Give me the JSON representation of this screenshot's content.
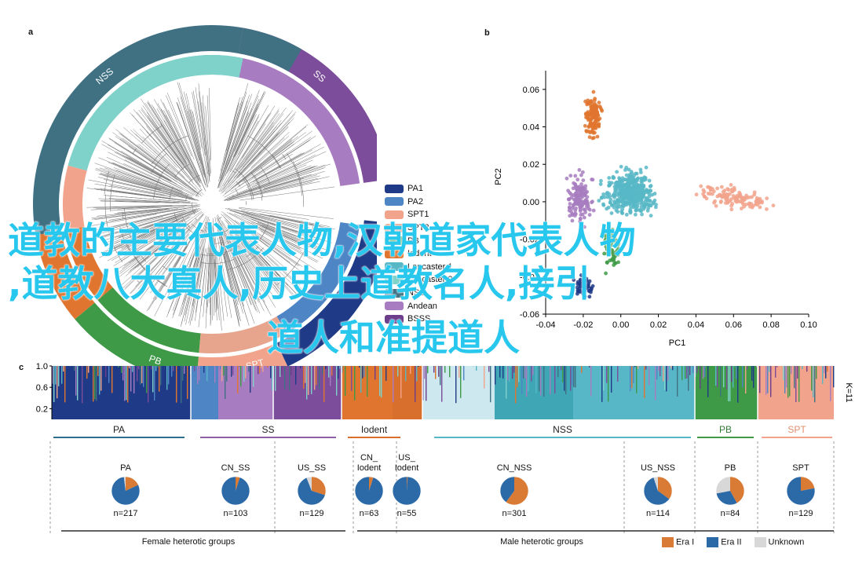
{
  "panels": {
    "a": "a",
    "b": "b",
    "c": "c"
  },
  "colors": {
    "PA1": "#1f3a86",
    "PA2": "#4e86c5",
    "SPT1": "#f2a38c",
    "SPT2": "#e8a58e",
    "PB": "#3f9a47",
    "Iodent": "#e0752f",
    "Lancaster1": "#57b7c6",
    "Lancaster2": "#7fd2c9",
    "NSS": "#3f7183",
    "Andean": "#a77cc0",
    "BSSS": "#6c3e8c",
    "SS": "#7b4d9a",
    "EraI": "#d97a35",
    "EraII": "#2c6aa7",
    "Unknown": "#d8d8d8"
  },
  "tree_ring_labels": [
    "NSS",
    "SS",
    "PB",
    "SPT"
  ],
  "legend_a": [
    {
      "label": "PA1",
      "color": "#1f3a86"
    },
    {
      "label": "PA2",
      "color": "#4e86c5"
    },
    {
      "label": "SPT1",
      "color": "#f2a38c"
    },
    {
      "label": "SPT2",
      "color": "#e8a58e"
    },
    {
      "label": "PB",
      "color": "#3f9a47"
    },
    {
      "label": "Iodent",
      "color": "#e0752f"
    },
    {
      "label": "Lancaster 1",
      "color": "#57b7c6"
    },
    {
      "label": "Lancaster 2",
      "color": "#7fd2c9"
    },
    {
      "label": "NSS",
      "color": "#3f7183"
    },
    {
      "label": "Andean",
      "color": "#a77cc0"
    },
    {
      "label": "BSSS",
      "color": "#6c3e8c"
    }
  ],
  "chart_data": [
    {
      "type": "scatter",
      "title": "",
      "xlabel": "PC1",
      "ylabel": "PC2",
      "xlim": [
        -0.04,
        0.1
      ],
      "ylim": [
        -0.06,
        0.07
      ],
      "x_ticks": [
        "-0.04",
        "-0.02",
        "0.00",
        "0.02",
        "0.04",
        "0.06",
        "0.08",
        "0.10"
      ],
      "y_ticks": [
        "0.06",
        "0.04",
        "0.02",
        "0.00",
        "-0.02",
        "-0.04",
        "-0.06"
      ],
      "series": [
        {
          "name": "Iodent",
          "color": "#e0752f",
          "center": [
            -0.015,
            0.045
          ],
          "spread": [
            0.004,
            0.01
          ],
          "count": 140
        },
        {
          "name": "Andean",
          "color": "#a77cc0",
          "center": [
            -0.022,
            0.002
          ],
          "spread": [
            0.006,
            0.012
          ],
          "count": 140
        },
        {
          "name": "Lancaster",
          "color": "#57b7c6",
          "center": [
            0.005,
            0.005
          ],
          "spread": [
            0.012,
            0.01
          ],
          "count": 420
        },
        {
          "name": "SPT",
          "color": "#f2a38c",
          "center": [
            0.06,
            0.002
          ],
          "spread": [
            0.018,
            0.005
          ],
          "count": 120
        },
        {
          "name": "PB",
          "color": "#3f9a47",
          "center": [
            -0.005,
            -0.025
          ],
          "spread": [
            0.004,
            0.01
          ],
          "count": 70
        },
        {
          "name": "PA",
          "color": "#1f3a86",
          "center": [
            -0.02,
            -0.045
          ],
          "spread": [
            0.005,
            0.005
          ],
          "count": 60
        }
      ]
    },
    {
      "type": "bar",
      "title": "",
      "ylabel": "",
      "ylim": [
        0,
        1.0
      ],
      "y_ticks": [
        "1.0",
        "0.6",
        "0.2"
      ],
      "k_label": "K=11"
    },
    {
      "type": "pie",
      "pies": [
        {
          "name": "PA",
          "n": "n=217",
          "EraI": 0.18,
          "EraII": 0.8,
          "Unknown": 0.02
        },
        {
          "name": "CN_SS",
          "n": "n=103",
          "EraI": 0.05,
          "EraII": 0.95,
          "Unknown": 0.0
        },
        {
          "name": "US_SS",
          "n": "n=129",
          "EraI": 0.3,
          "EraII": 0.64,
          "Unknown": 0.06
        },
        {
          "name": "CN_\nIodent",
          "n": "n=63",
          "EraI": 0.05,
          "EraII": 0.95,
          "Unknown": 0.0
        },
        {
          "name": "US_\nIodent",
          "n": "n=55",
          "EraI": 0.01,
          "EraII": 0.99,
          "Unknown": 0.0
        },
        {
          "name": "CN_NSS",
          "n": "n=301",
          "EraI": 0.6,
          "EraII": 0.4,
          "Unknown": 0.0
        },
        {
          "name": "US_NSS",
          "n": "n=114",
          "EraI": 0.35,
          "EraII": 0.6,
          "Unknown": 0.05
        },
        {
          "name": "PB",
          "n": "n=84",
          "EraI": 0.42,
          "EraII": 0.3,
          "Unknown": 0.28
        },
        {
          "name": "SPT",
          "n": "n=129",
          "EraI": 0.22,
          "EraII": 0.78,
          "Unknown": 0.0
        }
      ]
    }
  ],
  "groups_c": [
    {
      "label": "PA",
      "color": "#2c6f8f"
    },
    {
      "label": "SS",
      "color": "#8d5fa8"
    },
    {
      "label": "Iodent",
      "color": "#d96f2d"
    },
    {
      "label": "NSS",
      "color": "#57b7c6"
    },
    {
      "label": "PB",
      "color": "#3f9a47"
    },
    {
      "label": "SPT",
      "color": "#f2a38c"
    }
  ],
  "bottom_groups": {
    "female": "Female heterotic groups",
    "male": "Male heterotic groups"
  },
  "legend_c": [
    {
      "label": "Era I",
      "color": "#d97a35"
    },
    {
      "label": "Era II",
      "color": "#2c6aa7"
    },
    {
      "label": "Unknown",
      "color": "#d8d8d8"
    }
  ],
  "overlay": {
    "line1": "道教的主要代表人物,汉朝道家代表人物",
    "line2": ",道教八大真人,历史上道教名人,接引",
    "line3": "道人和准提道人"
  }
}
